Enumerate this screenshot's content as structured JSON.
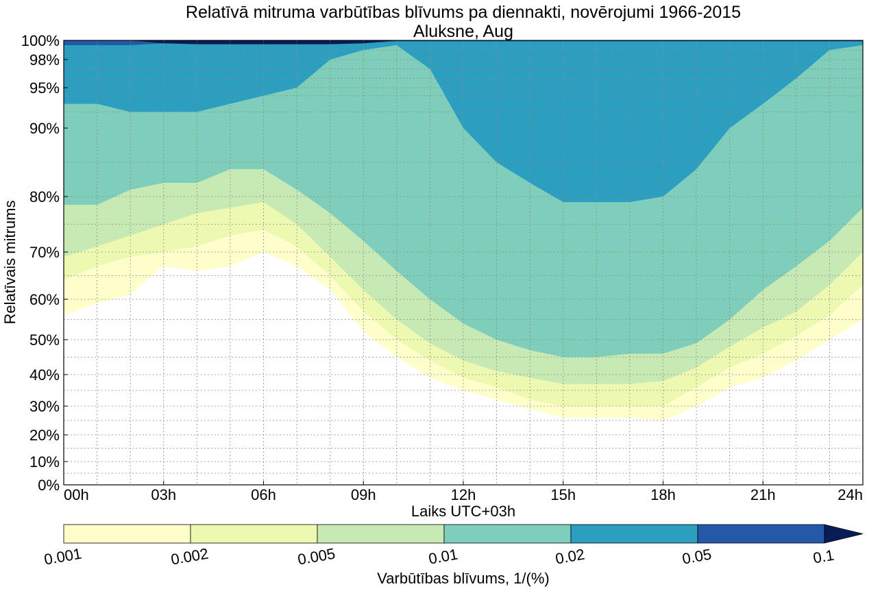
{
  "chart_data": {
    "type": "heatmap",
    "title": "Relatīvā mitruma varbūtības blīvums pa diennakti, novērojumi 1966-2015",
    "subtitle": "Aluksne, Aug",
    "xlabel": "Laiks UTC+03h",
    "ylabel": "Relatīvais mitrums",
    "xlim": [
      0,
      24
    ],
    "x_ticks": [
      0,
      3,
      6,
      9,
      12,
      15,
      18,
      21,
      24
    ],
    "x_tick_labels": [
      "00h",
      "03h",
      "06h",
      "09h",
      "12h",
      "15h",
      "18h",
      "21h",
      "24h"
    ],
    "y_ticks": [
      0,
      10,
      20,
      30,
      40,
      50,
      60,
      70,
      80,
      90,
      95,
      98,
      100
    ],
    "y_tick_labels": [
      "0%",
      "10%",
      "20%",
      "30%",
      "40%",
      "50%",
      "60%",
      "70%",
      "80%",
      "90%",
      "95%",
      "98%",
      "100%"
    ],
    "y_scale": "nonlinear (expanded near 100%)",
    "grid": true,
    "colorbar": {
      "label": "Varbūtības blīvums, 1/(%)",
      "levels": [
        0.001,
        0.002,
        0.005,
        0.01,
        0.02,
        0.05,
        0.1
      ],
      "level_labels": [
        "0.001",
        "0.002",
        "0.005",
        "0.01",
        "0.02",
        "0.05",
        "0.1"
      ],
      "colors": [
        "#ffffcc",
        "#edf8b1",
        "#c7e9b4",
        "#7fcdbb",
        "#2c9fc1",
        "#2359a6",
        "#081d58"
      ],
      "extend": "max"
    },
    "contour_boundaries": [
      {
        "level": 0.001,
        "points": [
          [
            0,
            56
          ],
          [
            1,
            59
          ],
          [
            2,
            61
          ],
          [
            2.8,
            66
          ],
          [
            3,
            67
          ],
          [
            4,
            66
          ],
          [
            5,
            67
          ],
          [
            6,
            70
          ],
          [
            7,
            67
          ],
          [
            8,
            62
          ],
          [
            9,
            52
          ],
          [
            10,
            45
          ],
          [
            11,
            39
          ],
          [
            12,
            35
          ],
          [
            13,
            32
          ],
          [
            14,
            29
          ],
          [
            15,
            26
          ],
          [
            16,
            26
          ],
          [
            17,
            26
          ],
          [
            18,
            25
          ],
          [
            19,
            30
          ],
          [
            20,
            36
          ],
          [
            21,
            39
          ],
          [
            22,
            44
          ],
          [
            23,
            50
          ],
          [
            24,
            55
          ]
        ]
      },
      {
        "level": 0.002,
        "points": [
          [
            0,
            64
          ],
          [
            1,
            67
          ],
          [
            2,
            69
          ],
          [
            3,
            70
          ],
          [
            4,
            71
          ],
          [
            5,
            73
          ],
          [
            6,
            74
          ],
          [
            7,
            71
          ],
          [
            8,
            65
          ],
          [
            9,
            57
          ],
          [
            10,
            50
          ],
          [
            11,
            44
          ],
          [
            12,
            39
          ],
          [
            13,
            36
          ],
          [
            14,
            32
          ],
          [
            15,
            30
          ],
          [
            16,
            30
          ],
          [
            17,
            30
          ],
          [
            18,
            30
          ],
          [
            19,
            36
          ],
          [
            20,
            42
          ],
          [
            21,
            46
          ],
          [
            22,
            51
          ],
          [
            23,
            56
          ],
          [
            24,
            63
          ]
        ]
      },
      {
        "level": 0.005,
        "points": [
          [
            0,
            69
          ],
          [
            1,
            71
          ],
          [
            2,
            73
          ],
          [
            3,
            75
          ],
          [
            4,
            77
          ],
          [
            5,
            78
          ],
          [
            6,
            79
          ],
          [
            7,
            75
          ],
          [
            8,
            69
          ],
          [
            9,
            62
          ],
          [
            10,
            55
          ],
          [
            11,
            49
          ],
          [
            12,
            44
          ],
          [
            13,
            41
          ],
          [
            14,
            39
          ],
          [
            15,
            37
          ],
          [
            16,
            37
          ],
          [
            17,
            37
          ],
          [
            18,
            38
          ],
          [
            19,
            42
          ],
          [
            20,
            48
          ],
          [
            21,
            53
          ],
          [
            22,
            57
          ],
          [
            23,
            63
          ],
          [
            24,
            70
          ]
        ]
      },
      {
        "level": 0.01,
        "points": [
          [
            0,
            78.5
          ],
          [
            1,
            78.5
          ],
          [
            2,
            81
          ],
          [
            3,
            82
          ],
          [
            4,
            82
          ],
          [
            5,
            84
          ],
          [
            6,
            84
          ],
          [
            7,
            81
          ],
          [
            8,
            77
          ],
          [
            9,
            72
          ],
          [
            10,
            66
          ],
          [
            11,
            60
          ],
          [
            12,
            54
          ],
          [
            13,
            50
          ],
          [
            14,
            47
          ],
          [
            15,
            45
          ],
          [
            16,
            45
          ],
          [
            17,
            46
          ],
          [
            18,
            46
          ],
          [
            19,
            49
          ],
          [
            20,
            55
          ],
          [
            21,
            62
          ],
          [
            22,
            67
          ],
          [
            23,
            72
          ],
          [
            24,
            78
          ]
        ]
      },
      {
        "level": 0.02,
        "points": [
          [
            0,
            93
          ],
          [
            1,
            93
          ],
          [
            2,
            92
          ],
          [
            3,
            92
          ],
          [
            4,
            92
          ],
          [
            5,
            93
          ],
          [
            6,
            94
          ],
          [
            7,
            95
          ],
          [
            8,
            98
          ],
          [
            9,
            99
          ],
          [
            10,
            99.5
          ],
          [
            11,
            97
          ],
          [
            12,
            90
          ],
          [
            13,
            85
          ],
          [
            14,
            82
          ],
          [
            15,
            79
          ],
          [
            16,
            79
          ],
          [
            17,
            79
          ],
          [
            18,
            80
          ],
          [
            19,
            84
          ],
          [
            20,
            90
          ],
          [
            21,
            93
          ],
          [
            22,
            96
          ],
          [
            23,
            99
          ],
          [
            24,
            99.5
          ]
        ]
      },
      {
        "level": 0.05,
        "points": [
          [
            0,
            99.5
          ],
          [
            1,
            99.5
          ],
          [
            2,
            99.5
          ],
          [
            3,
            99.7
          ],
          [
            4,
            99.7
          ],
          [
            5,
            99.7
          ],
          [
            6,
            99.7
          ],
          [
            7,
            99.7
          ],
          [
            8,
            99.7
          ],
          [
            9,
            99.7
          ],
          [
            10,
            99.9
          ],
          [
            11,
            99.9
          ],
          [
            12,
            99.9
          ],
          [
            13,
            99.9
          ],
          [
            14,
            99.9
          ],
          [
            15,
            99.9
          ],
          [
            16,
            99.9
          ],
          [
            17,
            99.9
          ],
          [
            18,
            99.9
          ],
          [
            19,
            99.9
          ],
          [
            20,
            99.9
          ],
          [
            21,
            99.9
          ],
          [
            22,
            99.9
          ],
          [
            23,
            99.9
          ],
          [
            24,
            99.9
          ]
        ]
      },
      {
        "level": 0.1,
        "points": [
          [
            2,
            100
          ],
          [
            3,
            99.7
          ],
          [
            4,
            99.6
          ],
          [
            5,
            99.6
          ],
          [
            6,
            99.6
          ],
          [
            7,
            99.6
          ],
          [
            8,
            99.6
          ],
          [
            9,
            99.7
          ],
          [
            10,
            100
          ]
        ]
      }
    ]
  }
}
